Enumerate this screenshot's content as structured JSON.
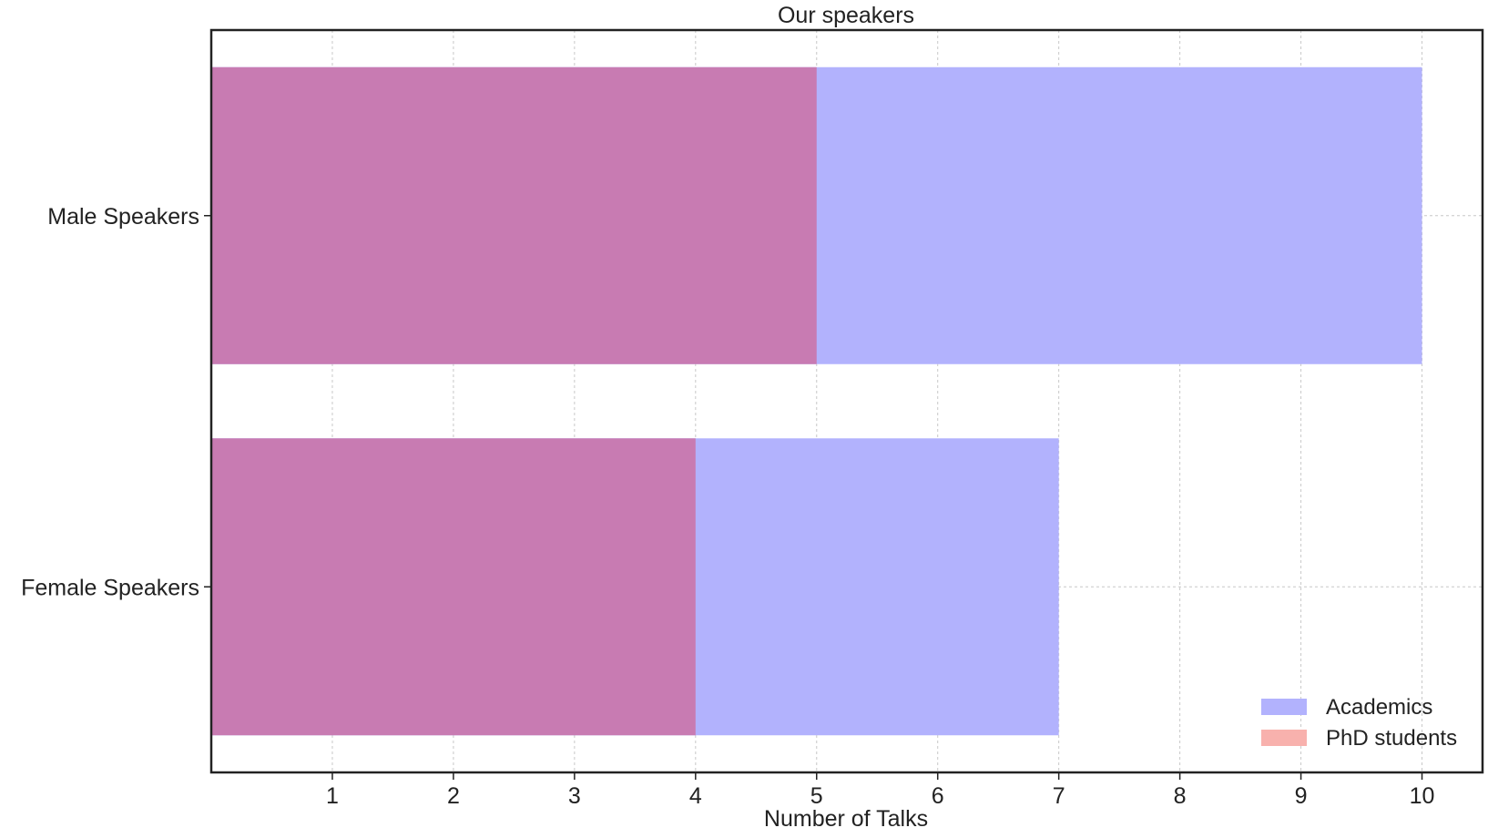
{
  "chart_data": {
    "type": "bar",
    "orientation": "horizontal",
    "title": "Our speakers",
    "xlabel": "Number of Talks",
    "ylabel": "",
    "categories": [
      "Male Speakers",
      "Female Speakers"
    ],
    "series": [
      {
        "name": "Academics",
        "values": [
          10,
          7
        ],
        "color": "#b2b2fd"
      },
      {
        "name": "PhD students",
        "values": [
          5,
          4
        ],
        "color": "#c87bb2",
        "legend_color": "#f8b1ad"
      }
    ],
    "xlim": [
      0,
      10.5
    ],
    "xticks": [
      1,
      2,
      3,
      4,
      5,
      6,
      7,
      8,
      9,
      10
    ],
    "grid": true,
    "legend_position": "lower-right"
  }
}
